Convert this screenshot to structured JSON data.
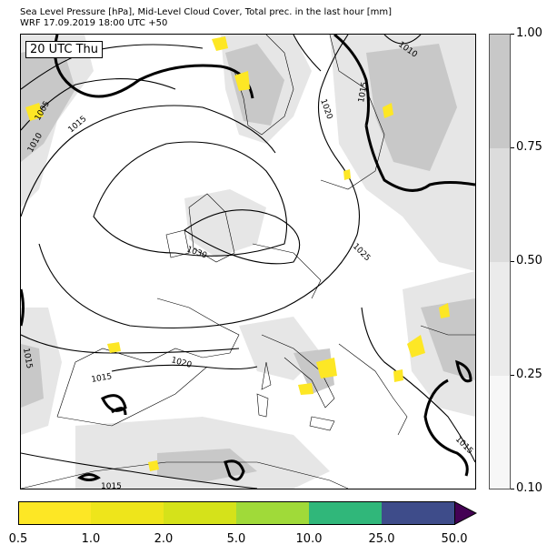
{
  "header": {
    "title_line1": "Sea Level Pressure [hPa], Mid-Level Cloud Cover, Total prec. in the last hour [mm]",
    "title_line2": "WRF 17.09.2019 18:00 UTC +50"
  },
  "map": {
    "time_label": "20 UTC Thu",
    "isobar_labels": [
      "1010",
      "1015",
      "1020",
      "1005",
      "1010",
      "1015",
      "1030",
      "1025",
      "1020",
      "1015",
      "1015",
      "1015",
      "1015"
    ],
    "colors": {
      "cloud_light": "#e8e8e8",
      "cloud_mid": "#c8c8c8",
      "precip_yellow": "#fde725",
      "isobar": "#000000"
    }
  },
  "cloud_colorbar": {
    "ticks": [
      "1.00",
      "0.75",
      "0.50",
      "0.25",
      "0.10"
    ],
    "colors": [
      "#c8c8c8",
      "#dcdcdc",
      "#ebebeb",
      "#f7f7f7"
    ]
  },
  "precip_colorbar": {
    "ticks": [
      "0.5",
      "1.0",
      "2.0",
      "5.0",
      "10.0",
      "25.0",
      "50.0"
    ],
    "colors": [
      "#fde725",
      "#eee51b",
      "#d5e21a",
      "#a0da39",
      "#30b77a",
      "#3e4c8a",
      "#440154"
    ]
  }
}
